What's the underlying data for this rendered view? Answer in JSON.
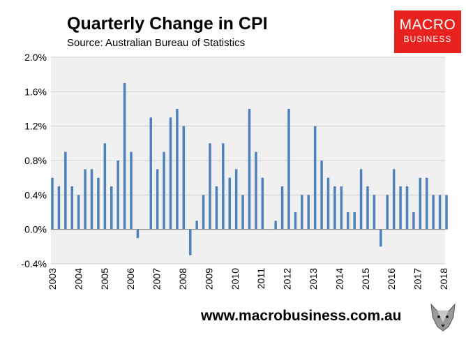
{
  "header": {
    "title": "Quarterly Change in CPI",
    "subtitle": "Source: Australian Bureau of Statistics"
  },
  "brand": {
    "logo_line1": "MACRO",
    "logo_line2": "BUSINESS",
    "logo_color": "#e8231f",
    "footer_url": "www.macrobusiness.com.au",
    "mascot_icon": "wolf-head-icon"
  },
  "chart_data": {
    "type": "bar",
    "title": "Quarterly Change in CPI",
    "subtitle": "Source: Australian Bureau of Statistics",
    "xlabel": "",
    "ylabel": "",
    "ylim": [
      -0.4,
      2.0
    ],
    "yticks": [
      "2.0%",
      "1.6%",
      "1.2%",
      "0.8%",
      "0.4%",
      "0.0%",
      "-0.4%"
    ],
    "year_labels": [
      "2003",
      "2004",
      "2005",
      "2006",
      "2007",
      "2008",
      "2009",
      "2010",
      "2011",
      "2012",
      "2013",
      "2014",
      "2015",
      "2016",
      "2017",
      "2018"
    ],
    "values": [
      0.6,
      0.5,
      0.9,
      0.5,
      0.4,
      0.7,
      0.7,
      0.6,
      1.0,
      0.5,
      0.8,
      1.7,
      0.9,
      -0.1,
      0.0,
      1.3,
      0.7,
      0.9,
      1.3,
      1.4,
      1.2,
      -0.3,
      0.1,
      0.4,
      1.0,
      0.5,
      1.0,
      0.6,
      0.7,
      0.4,
      1.4,
      0.9,
      0.6,
      0.0,
      0.1,
      0.5,
      1.4,
      0.2,
      0.4,
      0.4,
      1.2,
      0.8,
      0.6,
      0.5,
      0.5,
      0.2,
      0.2,
      0.7,
      0.5,
      0.4,
      -0.2,
      0.4,
      0.7,
      0.5,
      0.5,
      0.2,
      0.6,
      0.6,
      0.4,
      0.4,
      0.4
    ],
    "bar_color": "#4f81bd",
    "plot_background": "#f0f0f0",
    "grid": true,
    "legend": "none"
  }
}
